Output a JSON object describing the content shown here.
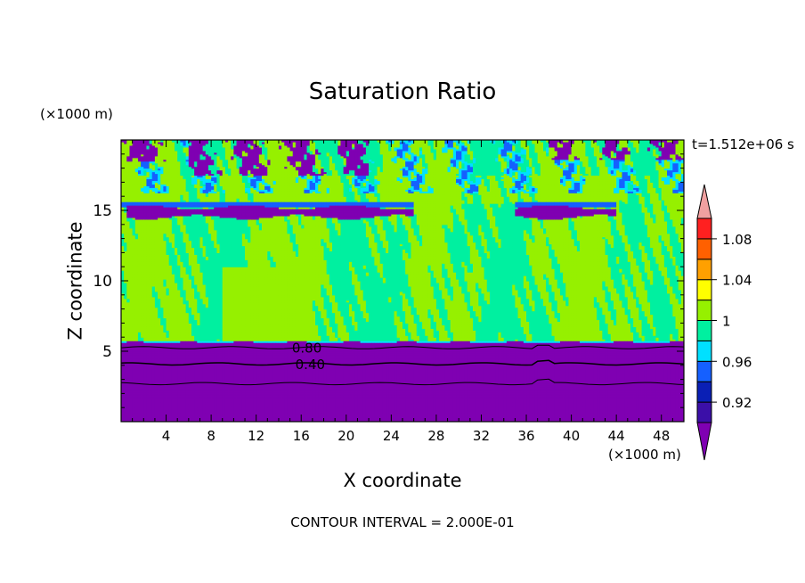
{
  "chart_data": {
    "type": "heatmap",
    "title": "Saturation Ratio",
    "xlabel": "X coordinate",
    "ylabel": "Z coordinate",
    "x_unit": "(×1000 m)",
    "y_unit": "(×1000 m)",
    "time_label": "t=1.512e+06 s",
    "footer": "CONTOUR INTERVAL = 2.000E-01",
    "xlim": [
      0,
      50
    ],
    "ylim": [
      0,
      20
    ],
    "x_ticks": [
      4,
      8,
      12,
      16,
      20,
      24,
      28,
      32,
      36,
      40,
      44,
      48
    ],
    "y_ticks": [
      5,
      10,
      15
    ],
    "contour_labels": [
      {
        "text": "0.80",
        "x": 16.5,
        "z": 5.3
      },
      {
        "text": "0.40",
        "x": 16.8,
        "z": 4.1
      }
    ],
    "colorbar": {
      "levels": [
        "<0.90",
        "0.90–0.92",
        "0.92–0.94",
        "0.94–0.96",
        "0.96–0.98",
        "0.98–1.00",
        "1.00–1.02",
        "1.02–1.04",
        "1.04–1.06",
        "1.06–1.08",
        "1.08–1.10",
        ">1.10"
      ],
      "colors": [
        "#7f00b2",
        "#3b0fa8",
        "#0a1fb5",
        "#1560ff",
        "#00e0ff",
        "#00f0a0",
        "#96f000",
        "#ffff00",
        "#ffa000",
        "#ff6000",
        "#ff2020",
        "#f0a0a0"
      ],
      "tick_labels": [
        "0.92",
        "0.96",
        "1",
        "1.04",
        "1.08"
      ]
    },
    "regions": {
      "below_cloud": {
        "z_top": 5.7,
        "value": "<0.90"
      },
      "mid_layer": {
        "z_range": [
          5.7,
          19.8
        ],
        "dominant_values": [
          "0.98–1.00",
          "1.00–1.02"
        ]
      },
      "dry_band": {
        "z_range": [
          14.5,
          15.3
        ],
        "value": "<0.90"
      },
      "upper_patches": {
        "z_range": [
          16.5,
          19.8
        ],
        "value": "<0.90"
      }
    }
  }
}
